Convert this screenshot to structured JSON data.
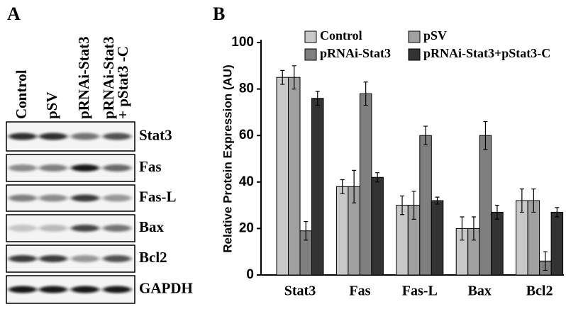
{
  "panel_a": {
    "label": "A",
    "lanes": [
      [
        "Control"
      ],
      [
        "pSV"
      ],
      [
        "pRNAi-Stat3"
      ],
      [
        "pRNAi-Stat3",
        "+ pStat3 -C"
      ]
    ],
    "rows": [
      "Stat3",
      "Fas",
      "Fas-L",
      "Bax",
      "Bcl2",
      "GAPDH"
    ]
  },
  "chart_data": {
    "type": "bar",
    "panel_label": "B",
    "y_label": "Relative Protein Expression (AU)",
    "categories": [
      "Stat3",
      "Fas",
      "Fas-L",
      "Bax",
      "Bcl2"
    ],
    "series": [
      {
        "name": "Control",
        "color": "#c8c8c8",
        "values": [
          85,
          38,
          30,
          20,
          32
        ],
        "error": [
          3,
          3,
          4,
          5,
          5
        ]
      },
      {
        "name": "pSV",
        "color": "#a0a0a0",
        "values": [
          85,
          38,
          30,
          20,
          32
        ],
        "error": [
          5,
          7,
          6,
          5,
          5
        ]
      },
      {
        "name": "pRNAi-Stat3",
        "color": "#7f7f7f",
        "values": [
          19,
          78,
          60,
          60,
          6
        ],
        "error": [
          4,
          5,
          4,
          6,
          4
        ]
      },
      {
        "name": "pRNAi-Stat3+pStat3-C",
        "color": "#333333",
        "values": [
          76,
          42,
          32,
          27,
          27
        ],
        "error": [
          3,
          2,
          1.5,
          3,
          2
        ]
      }
    ],
    "ylim": [
      0,
      100
    ],
    "yticks": [
      0,
      20,
      40,
      60,
      80,
      100
    ],
    "grid": false,
    "legend": "top"
  }
}
